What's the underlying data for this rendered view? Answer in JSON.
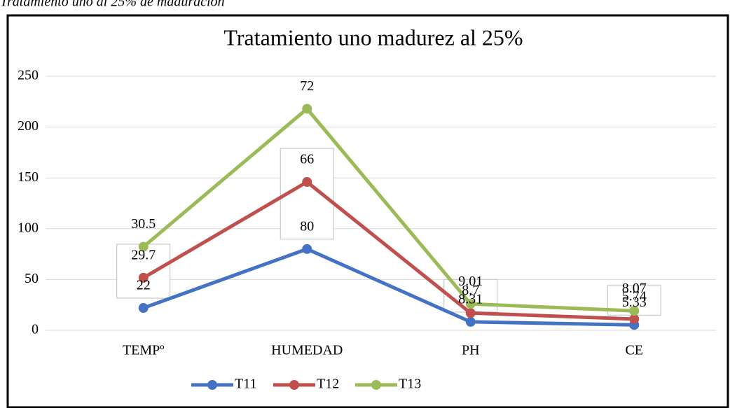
{
  "caption": "Tratamiento uno al 25% de maduración",
  "chart_data": {
    "type": "line",
    "stacked": true,
    "title": "Tratamiento uno madurez al 25%",
    "categories": [
      "TEMPº",
      "HUMEDAD",
      "PH",
      "CE"
    ],
    "series": [
      {
        "name": "T11",
        "color": "#4472c4",
        "values": [
          22,
          80,
          8.31,
          5.33
        ]
      },
      {
        "name": "T12",
        "color": "#c0504d",
        "values": [
          29.7,
          66,
          8.7,
          5.74
        ]
      },
      {
        "name": "T13",
        "color": "#9bbb59",
        "values": [
          30.5,
          72,
          9.01,
          8.07
        ]
      }
    ],
    "ylim": [
      0,
      250
    ],
    "yticks": [
      0,
      50,
      100,
      150,
      200,
      250
    ],
    "grid": true,
    "legend": "bottom"
  }
}
